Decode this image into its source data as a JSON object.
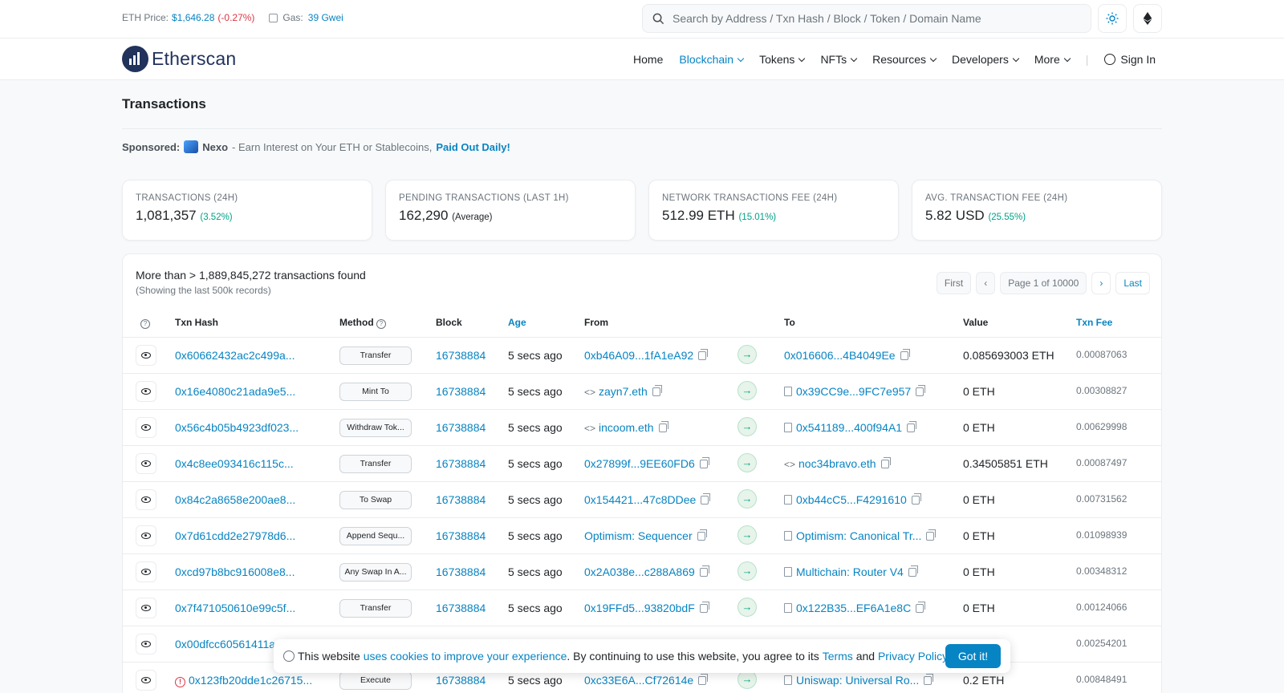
{
  "topbar": {
    "eth_price_label": "ETH Price:",
    "eth_price": "$1,646.28",
    "eth_change": "(-0.27%)",
    "gas_label": "Gas:",
    "gas_value": "39 Gwei",
    "search_placeholder": "Search by Address / Txn Hash / Block / Token / Domain Name"
  },
  "brand": {
    "name": "Etherscan"
  },
  "nav": {
    "home": "Home",
    "blockchain": "Blockchain",
    "tokens": "Tokens",
    "nfts": "NFTs",
    "resources": "Resources",
    "developers": "Developers",
    "more": "More",
    "sign_in": "Sign In"
  },
  "page": {
    "title": "Transactions",
    "sponsored_label": "Sponsored:",
    "sponsor_name": "Nexo",
    "sponsor_text": "- Earn Interest on Your ETH or Stablecoins,",
    "sponsor_cta": "Paid Out Daily!"
  },
  "stats": [
    {
      "label": "TRANSACTIONS (24H)",
      "value": "1,081,357",
      "extra": "(3.52%)"
    },
    {
      "label": "PENDING TRANSACTIONS (LAST 1H)",
      "value": "162,290",
      "extra": "(Average)"
    },
    {
      "label": "NETWORK TRANSACTIONS FEE (24H)",
      "value": "512.99 ETH",
      "extra": "(15.01%)"
    },
    {
      "label": "AVG. TRANSACTION FEE (24H)",
      "value": "5.82 USD",
      "extra": "(25.55%)"
    }
  ],
  "table": {
    "found_text": "More than > 1,889,845,272 transactions found",
    "showing_text": "(Showing the last 500k records)",
    "pager": {
      "first": "First",
      "prev": "‹",
      "page": "Page 1 of 10000",
      "next": "›",
      "last": "Last"
    },
    "headers": {
      "hash": "Txn Hash",
      "method": "Method",
      "block": "Block",
      "age": "Age",
      "from": "From",
      "to": "To",
      "value": "Value",
      "fee": "Txn Fee"
    },
    "rows": [
      {
        "hash": "0x60662432ac2c499a...",
        "method": "Transfer",
        "block": "16738884",
        "age": "5 secs ago",
        "from": "0xb46A09...1fA1eA92",
        "to": "0x016606...4B4049Ee",
        "value": "0.085693003 ETH",
        "fee": "0.00087063"
      },
      {
        "hash": "0x16e4080c21ada9e5...",
        "method": "Mint To",
        "block": "16738884",
        "age": "5 secs ago",
        "from": "zayn7.eth",
        "to": "0x39CC9e...9FC7e957",
        "value": "0 ETH",
        "fee": "0.00308827"
      },
      {
        "hash": "0x56c4b05b4923df023...",
        "method": "Withdraw Tok...",
        "block": "16738884",
        "age": "5 secs ago",
        "from": "incoom.eth",
        "to": "0x541189...400f94A1",
        "value": "0 ETH",
        "fee": "0.00629998"
      },
      {
        "hash": "0x4c8ee093416c115c...",
        "method": "Transfer",
        "block": "16738884",
        "age": "5 secs ago",
        "from": "0x27899f...9EE60FD6",
        "to": "noc34bravo.eth",
        "value": "0.34505851 ETH",
        "fee": "0.00087497"
      },
      {
        "hash": "0x84c2a8658e200ae8...",
        "method": "To Swap",
        "block": "16738884",
        "age": "5 secs ago",
        "from": "0x154421...47c8DDee",
        "to": "0xb44cC5...F4291610",
        "value": "0 ETH",
        "fee": "0.00731562"
      },
      {
        "hash": "0x7d61cdd2e27978d6...",
        "method": "Append Sequ...",
        "block": "16738884",
        "age": "5 secs ago",
        "from": "Optimism: Sequencer",
        "to": "Optimism: Canonical Tr...",
        "value": "0 ETH",
        "fee": "0.01098939"
      },
      {
        "hash": "0xcd97b8bc916008e8...",
        "method": "Any Swap In A...",
        "block": "16738884",
        "age": "5 secs ago",
        "from": "0x2A038e...c288A869",
        "to": "Multichain: Router V4",
        "value": "0 ETH",
        "fee": "0.00348312"
      },
      {
        "hash": "0x7f471050610e99c5f...",
        "method": "Transfer",
        "block": "16738884",
        "age": "5 secs ago",
        "from": "0x19FFd5...93820bdF",
        "to": "0x122B35...EF6A1e8C",
        "value": "0 ETH",
        "fee": "0.00124066"
      },
      {
        "hash": "0x00dfcc60561411a",
        "fee": "0.00254201"
      },
      {
        "hash": "0x123fb20dde1c26715...",
        "method": "Execute",
        "block": "16738884",
        "age": "5 secs ago",
        "from": "0xc33E6A...Cf72614e",
        "to": "Uniswap: Universal Ro...",
        "value": "0.2 ETH",
        "fee": "0.00848491"
      }
    ]
  },
  "cookie": {
    "text1": "This website",
    "link1": "uses cookies to improve your experience",
    "text2": ". By continuing to use this website, you agree to its",
    "terms": "Terms",
    "and": "and",
    "privacy": "Privacy Policy",
    "dot": ".",
    "button": "Got it!"
  }
}
